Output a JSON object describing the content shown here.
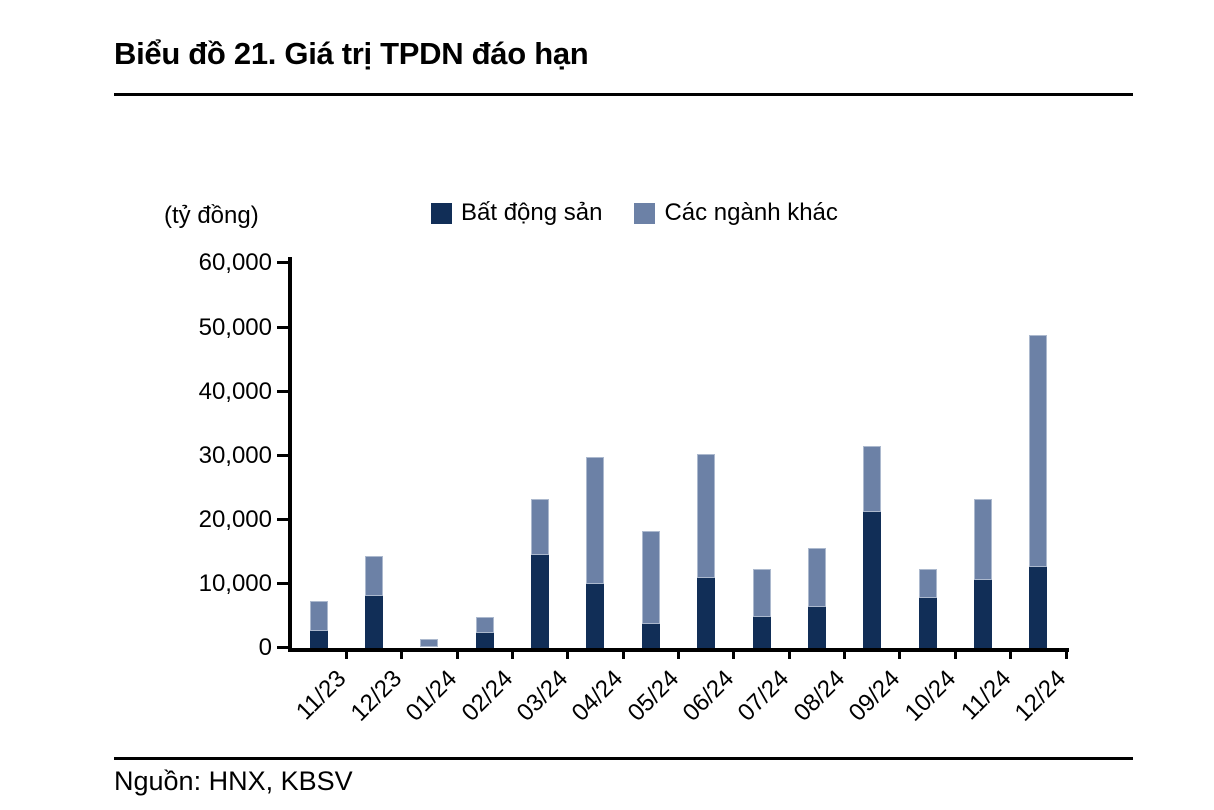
{
  "title": "Biểu đồ 21. Giá trị TPDN đáo hạn",
  "unit_label": "(tỷ đồng)",
  "source": "Nguồn: HNX, KBSV",
  "legend": [
    {
      "label": "Bất động sản",
      "color": "#112E57"
    },
    {
      "label": "Các ngành khác",
      "color": "#6C81A6"
    }
  ],
  "chart_data": {
    "type": "bar",
    "stacked": true,
    "title": "Biểu đồ 21. Giá trị TPDN đáo hạn",
    "unit": "tỷ đồng",
    "xlabel": "",
    "ylabel": "(tỷ đồng)",
    "ylim": [
      0,
      60000
    ],
    "ytick_step": 10000,
    "ytick_labels": [
      "0",
      "10,000",
      "20,000",
      "30,000",
      "40,000",
      "50,000",
      "60,000"
    ],
    "grid": false,
    "legend_position": "top",
    "categories": [
      "11/23",
      "12/23",
      "01/24",
      "02/24",
      "03/24",
      "04/24",
      "05/24",
      "06/24",
      "07/24",
      "08/24",
      "09/24",
      "10/24",
      "11/24",
      "12/24"
    ],
    "series": [
      {
        "name": "Bất động sản",
        "color": "#112E57",
        "values": [
          2500,
          8100,
          0,
          2200,
          14400,
          9900,
          3700,
          10800,
          4800,
          6300,
          21200,
          7800,
          10500,
          12500
        ]
      },
      {
        "name": "Các ngành khác",
        "color": "#6C81A6",
        "values": [
          4700,
          6100,
          1300,
          2600,
          8700,
          19800,
          14400,
          19400,
          7400,
          9300,
          10200,
          4500,
          12700,
          36300
        ]
      }
    ],
    "totals": [
      7200,
      14200,
      1300,
      4800,
      23100,
      29700,
      18100,
      30200,
      12200,
      15600,
      31400,
      12300,
      23200,
      48800
    ]
  }
}
